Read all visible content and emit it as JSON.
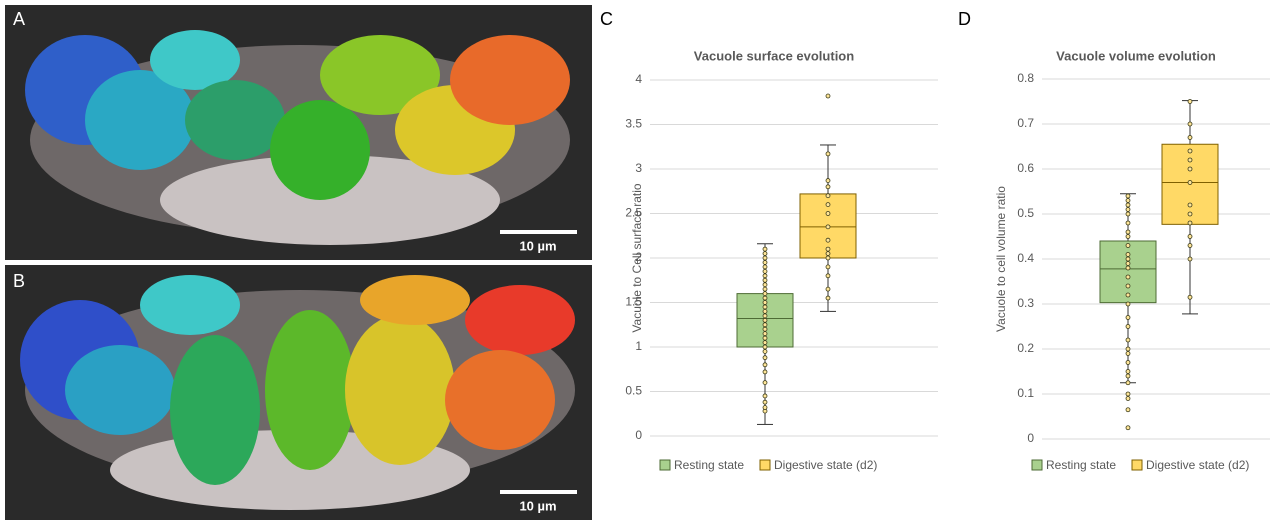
{
  "images": [
    {
      "label": "A",
      "scale_bar": "10 µm"
    },
    {
      "label": "B",
      "scale_bar": "10 µm"
    }
  ],
  "chart_data": [
    {
      "type": "box",
      "panel_label": "C",
      "title": "Vacuole surface evolution",
      "ylabel": "Vacuole to Cell surface ratio",
      "ylim": [
        0,
        4
      ],
      "yticks": [
        0,
        0.5,
        1,
        1.5,
        2,
        2.5,
        3,
        3.5,
        4
      ],
      "grid": true,
      "legend": "bottom",
      "series": [
        {
          "name": "Resting state",
          "color": "#a9d18e",
          "min": 0.13,
          "q1": 1.0,
          "median": 1.32,
          "q3": 1.6,
          "max": 2.16,
          "points": [
            0.28,
            0.32,
            0.38,
            0.45,
            0.6,
            0.72,
            0.8,
            0.88,
            0.95,
            1.0,
            1.05,
            1.1,
            1.15,
            1.2,
            1.25,
            1.3,
            1.35,
            1.4,
            1.45,
            1.5,
            1.55,
            1.6,
            1.65,
            1.7,
            1.75,
            1.8,
            1.85,
            1.9,
            1.95,
            2.0,
            2.05,
            2.1
          ]
        },
        {
          "name": "Digestive state (d2)",
          "color": "#ffd966",
          "min": 1.4,
          "q1": 2.0,
          "median": 2.35,
          "q3": 2.72,
          "max": 3.27,
          "points": [
            1.55,
            1.65,
            1.8,
            1.9,
            2.0,
            2.05,
            2.1,
            2.2,
            2.35,
            2.5,
            2.6,
            2.7,
            2.8,
            2.87,
            3.17,
            3.82
          ]
        }
      ]
    },
    {
      "type": "box",
      "panel_label": "D",
      "title": "Vacuole volume evolution",
      "ylabel": "Vacuole to cell volume ratio",
      "ylim": [
        0,
        0.8
      ],
      "yticks": [
        0,
        0.1,
        0.2,
        0.3,
        0.4,
        0.5,
        0.6,
        0.7,
        0.8
      ],
      "grid": true,
      "legend": "bottom",
      "series": [
        {
          "name": "Resting state",
          "color": "#a9d18e",
          "min": 0.125,
          "q1": 0.303,
          "median": 0.378,
          "q3": 0.44,
          "max": 0.545,
          "points": [
            0.025,
            0.065,
            0.09,
            0.1,
            0.125,
            0.14,
            0.15,
            0.17,
            0.19,
            0.2,
            0.22,
            0.25,
            0.27,
            0.3,
            0.32,
            0.34,
            0.36,
            0.38,
            0.39,
            0.4,
            0.41,
            0.43,
            0.45,
            0.46,
            0.48,
            0.5,
            0.51,
            0.52,
            0.53,
            0.54
          ]
        },
        {
          "name": "Digestive state (d2)",
          "color": "#ffd966",
          "min": 0.278,
          "q1": 0.477,
          "median": 0.57,
          "q3": 0.655,
          "max": 0.752,
          "points": [
            0.315,
            0.4,
            0.43,
            0.45,
            0.48,
            0.5,
            0.52,
            0.57,
            0.6,
            0.62,
            0.64,
            0.67,
            0.7,
            0.75
          ]
        }
      ]
    }
  ]
}
